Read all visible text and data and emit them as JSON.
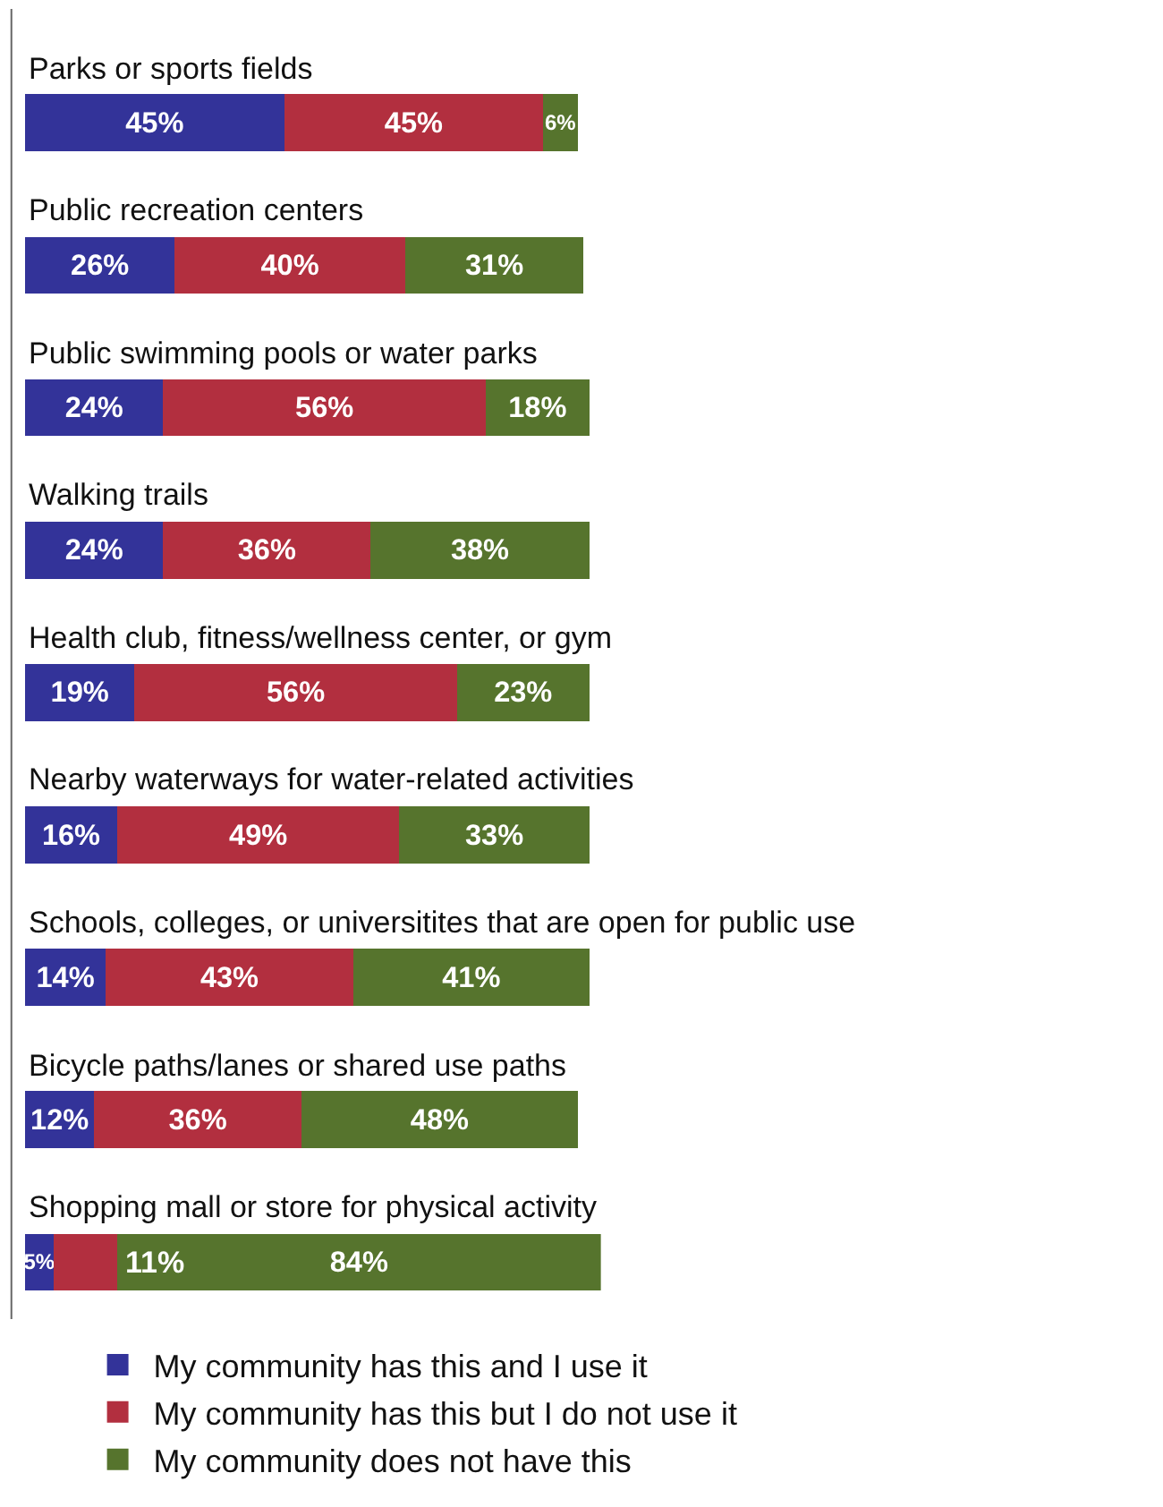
{
  "chart_data": {
    "type": "bar",
    "orientation": "horizontal",
    "stacked": true,
    "legend": "bottom",
    "categories": [
      "Parks or sports fields",
      "Public recreation centers",
      "Public swimming pools or water parks",
      "Walking trails",
      "Health club, fitness/wellness center, or gym",
      "Nearby waterways for water-related activities",
      "Schools, colleges, or universitites that are open for public use",
      "Bicycle paths/lanes or shared use paths",
      "Shopping mall or store for physical activity"
    ],
    "series": [
      {
        "name": "My community has this and I use it",
        "color": "#333399",
        "values": [
          45,
          26,
          24,
          24,
          19,
          16,
          14,
          12,
          5
        ],
        "value_labels": [
          "45%",
          "26%",
          "24%",
          "24%",
          "19%",
          "16%",
          "14%",
          "12%",
          "5%"
        ]
      },
      {
        "name": "My community has this but I do not use it",
        "color": "#b22f3f",
        "values": [
          45,
          40,
          56,
          36,
          56,
          49,
          43,
          36,
          11
        ],
        "value_labels": [
          "45%",
          "40%",
          "56%",
          "36%",
          "56%",
          "49%",
          "43%",
          "36%",
          "11%"
        ]
      },
      {
        "name": "My community does not have this",
        "color": "#56742d",
        "values": [
          6,
          31,
          18,
          38,
          23,
          33,
          41,
          48,
          84
        ],
        "value_labels": [
          "6%",
          "31%",
          "18%",
          "38%",
          "23%",
          "33%",
          "41%",
          "48%",
          "84%"
        ]
      }
    ]
  }
}
